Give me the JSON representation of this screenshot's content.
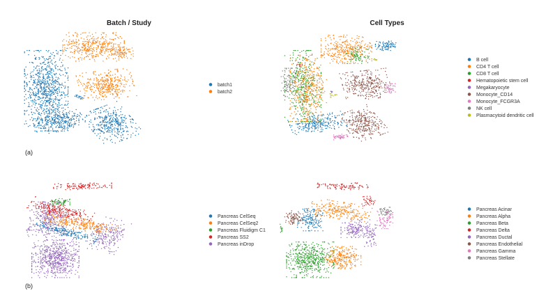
{
  "panel_labels": [
    "(a)",
    "(b)"
  ],
  "chart_data": [
    {
      "type": "scatter",
      "title": "Batch / Study",
      "series": [
        {
          "name": "batch1",
          "color": "#1f77b4"
        },
        {
          "name": "batch2",
          "color": "#ff7f0e"
        }
      ],
      "clusters": [
        {
          "series": "batch1",
          "cx": 0.14,
          "cy": 0.52,
          "rx": 0.12,
          "ry": 0.34,
          "n": 900
        },
        {
          "series": "batch1",
          "cx": 0.22,
          "cy": 0.78,
          "rx": 0.15,
          "ry": 0.08,
          "n": 260,
          "rot": -15
        },
        {
          "series": "batch1",
          "cx": 0.5,
          "cy": 0.8,
          "rx": 0.12,
          "ry": 0.15,
          "n": 380,
          "rot": -30
        },
        {
          "series": "batch1",
          "cx": 0.32,
          "cy": 0.57,
          "rx": 0.03,
          "ry": 0.02,
          "n": 20
        },
        {
          "series": "batch2",
          "cx": 0.4,
          "cy": 0.15,
          "rx": 0.17,
          "ry": 0.12,
          "n": 420
        },
        {
          "series": "batch2",
          "cx": 0.56,
          "cy": 0.2,
          "rx": 0.06,
          "ry": 0.05,
          "n": 80
        },
        {
          "series": "batch2",
          "cx": 0.47,
          "cy": 0.47,
          "rx": 0.15,
          "ry": 0.12,
          "n": 380,
          "rot": -10
        }
      ],
      "legend": {
        "placement": "right"
      },
      "grid": false
    },
    {
      "type": "scatter",
      "title": "Cell Types",
      "series": [
        {
          "name": "B cell",
          "color": "#1f77b4"
        },
        {
          "name": "CD4 T cell",
          "color": "#ff7f0e"
        },
        {
          "name": "CD8 T cell",
          "color": "#2ca02c"
        },
        {
          "name": "Hematopoietic stem cell",
          "color": "#d62728"
        },
        {
          "name": "Megakaryocyte",
          "color": "#9467bd"
        },
        {
          "name": "Monocyte_CD14",
          "color": "#8c564b"
        },
        {
          "name": "Monocyte_FCGR3A",
          "color": "#e377c2"
        },
        {
          "name": "NK cell",
          "color": "#7f7f7f"
        },
        {
          "name": "Plasmacytoid dendritic cell",
          "color": "#bcbd22"
        }
      ],
      "clusters": [
        {
          "series": "CD8 T cell",
          "cx": 0.14,
          "cy": 0.48,
          "rx": 0.1,
          "ry": 0.3,
          "n": 420
        },
        {
          "series": "CD4 T cell",
          "cx": 0.17,
          "cy": 0.5,
          "rx": 0.1,
          "ry": 0.28,
          "n": 380
        },
        {
          "series": "NK cell",
          "cx": 0.06,
          "cy": 0.45,
          "rx": 0.04,
          "ry": 0.12,
          "n": 90
        },
        {
          "series": "B cell",
          "cx": 0.22,
          "cy": 0.8,
          "rx": 0.15,
          "ry": 0.07,
          "n": 240,
          "rot": -15
        },
        {
          "series": "CD4 T cell",
          "cx": 0.38,
          "cy": 0.17,
          "rx": 0.14,
          "ry": 0.12,
          "n": 330
        },
        {
          "series": "CD8 T cell",
          "cx": 0.44,
          "cy": 0.22,
          "rx": 0.06,
          "ry": 0.07,
          "n": 80
        },
        {
          "series": "B cell",
          "cx": 0.6,
          "cy": 0.14,
          "rx": 0.06,
          "ry": 0.04,
          "n": 90
        },
        {
          "series": "Monocyte_CD14",
          "cx": 0.49,
          "cy": 0.47,
          "rx": 0.13,
          "ry": 0.12,
          "n": 330,
          "rot": -10
        },
        {
          "series": "Monocyte_FCGR3A",
          "cx": 0.62,
          "cy": 0.5,
          "rx": 0.03,
          "ry": 0.04,
          "n": 45
        },
        {
          "series": "Monocyte_CD14",
          "cx": 0.47,
          "cy": 0.8,
          "rx": 0.1,
          "ry": 0.13,
          "n": 320,
          "rot": -30
        },
        {
          "series": "Monocyte_FCGR3A",
          "cx": 0.35,
          "cy": 0.91,
          "rx": 0.04,
          "ry": 0.025,
          "n": 50
        },
        {
          "series": "Plasmacytoid dendritic cell",
          "cx": 0.31,
          "cy": 0.56,
          "rx": 0.02,
          "ry": 0.015,
          "n": 14
        },
        {
          "series": "Plasmacytoid dendritic cell",
          "cx": 0.54,
          "cy": 0.26,
          "rx": 0.015,
          "ry": 0.01,
          "n": 10
        },
        {
          "series": "Hematopoietic stem cell",
          "cx": 0.12,
          "cy": 0.3,
          "rx": 0.02,
          "ry": 0.02,
          "n": 8
        },
        {
          "series": "Megakaryocyte",
          "cx": 0.3,
          "cy": 0.53,
          "rx": 0.01,
          "ry": 0.01,
          "n": 5
        }
      ],
      "legend": {
        "placement": "right"
      },
      "grid": false
    },
    {
      "type": "scatter",
      "title": "",
      "series": [
        {
          "name": "Pancreas CelSeq",
          "color": "#1f77b4"
        },
        {
          "name": "Pancreas CelSeq2",
          "color": "#ff7f0e"
        },
        {
          "name": "Pancreas Fluidigm C1",
          "color": "#2ca02c"
        },
        {
          "name": "Pancreas SS2",
          "color": "#d62728"
        },
        {
          "name": "Pancreas inDrop",
          "color": "#9467bd"
        }
      ],
      "clusters": [
        {
          "series": "Pancreas inDrop",
          "cx": 0.19,
          "cy": 0.73,
          "rx": 0.13,
          "ry": 0.17,
          "n": 650
        },
        {
          "series": "Pancreas inDrop",
          "cx": 0.15,
          "cy": 0.38,
          "rx": 0.1,
          "ry": 0.16,
          "n": 280
        },
        {
          "series": "Pancreas inDrop",
          "cx": 0.48,
          "cy": 0.52,
          "rx": 0.09,
          "ry": 0.15,
          "n": 220,
          "rot": 20
        },
        {
          "series": "Pancreas SS2",
          "cx": 0.22,
          "cy": 0.3,
          "rx": 0.18,
          "ry": 0.06,
          "n": 260,
          "rot": 25
        },
        {
          "series": "Pancreas SS2",
          "cx": 0.34,
          "cy": 0.08,
          "rx": 0.16,
          "ry": 0.03,
          "n": 120
        },
        {
          "series": "Pancreas CelSeq2",
          "cx": 0.33,
          "cy": 0.42,
          "rx": 0.2,
          "ry": 0.05,
          "n": 260,
          "rot": 18
        },
        {
          "series": "Pancreas CelSeq",
          "cx": 0.25,
          "cy": 0.49,
          "rx": 0.18,
          "ry": 0.04,
          "n": 200,
          "rot": 22
        },
        {
          "series": "Pancreas Fluidigm C1",
          "cx": 0.22,
          "cy": 0.22,
          "rx": 0.05,
          "ry": 0.03,
          "n": 60
        },
        {
          "series": "Pancreas inDrop",
          "cx": 0.04,
          "cy": 0.49,
          "rx": 0.01,
          "ry": 0.04,
          "n": 12
        }
      ],
      "legend": {
        "placement": "right"
      },
      "grid": false
    },
    {
      "type": "scatter",
      "title": "",
      "series": [
        {
          "name": "Pancreas Acinar",
          "color": "#1f77b4"
        },
        {
          "name": "Pancreas Alpha",
          "color": "#ff7f0e"
        },
        {
          "name": "Pancreas Beta",
          "color": "#2ca02c"
        },
        {
          "name": "Pancreas Delta",
          "color": "#d62728"
        },
        {
          "name": "Pancreas Ductal",
          "color": "#9467bd"
        },
        {
          "name": "Pancreas Endothelial",
          "color": "#8c564b"
        },
        {
          "name": "Pancreas Gamma",
          "color": "#e377c2"
        },
        {
          "name": "Pancreas Stellate",
          "color": "#7f7f7f"
        }
      ],
      "clusters": [
        {
          "series": "Pancreas Beta",
          "cx": 0.18,
          "cy": 0.74,
          "rx": 0.13,
          "ry": 0.16,
          "n": 520
        },
        {
          "series": "Pancreas Alpha",
          "cx": 0.36,
          "cy": 0.72,
          "rx": 0.1,
          "ry": 0.1,
          "n": 260
        },
        {
          "series": "Pancreas Alpha",
          "cx": 0.34,
          "cy": 0.3,
          "rx": 0.17,
          "ry": 0.08,
          "n": 240,
          "rot": 15
        },
        {
          "series": "Pancreas Acinar",
          "cx": 0.18,
          "cy": 0.38,
          "rx": 0.07,
          "ry": 0.1,
          "n": 160
        },
        {
          "series": "Pancreas Endothelial",
          "cx": 0.09,
          "cy": 0.36,
          "rx": 0.05,
          "ry": 0.06,
          "n": 90
        },
        {
          "series": "Pancreas Ductal",
          "cx": 0.43,
          "cy": 0.46,
          "rx": 0.08,
          "ry": 0.08,
          "n": 160
        },
        {
          "series": "Pancreas Ductal",
          "cx": 0.52,
          "cy": 0.52,
          "rx": 0.04,
          "ry": 0.1,
          "n": 60
        },
        {
          "series": "Pancreas Gamma",
          "cx": 0.6,
          "cy": 0.38,
          "rx": 0.05,
          "ry": 0.08,
          "n": 70
        },
        {
          "series": "Pancreas Stellate",
          "cx": 0.6,
          "cy": 0.3,
          "rx": 0.04,
          "ry": 0.04,
          "n": 50
        },
        {
          "series": "Pancreas Delta",
          "cx": 0.36,
          "cy": 0.08,
          "rx": 0.14,
          "ry": 0.03,
          "n": 100
        },
        {
          "series": "Pancreas Delta",
          "cx": 0.5,
          "cy": 0.22,
          "rx": 0.04,
          "ry": 0.05,
          "n": 40
        },
        {
          "series": "Pancreas Beta",
          "cx": 0.02,
          "cy": 0.46,
          "rx": 0.01,
          "ry": 0.04,
          "n": 12
        }
      ],
      "legend": {
        "placement": "right"
      },
      "grid": false
    }
  ]
}
